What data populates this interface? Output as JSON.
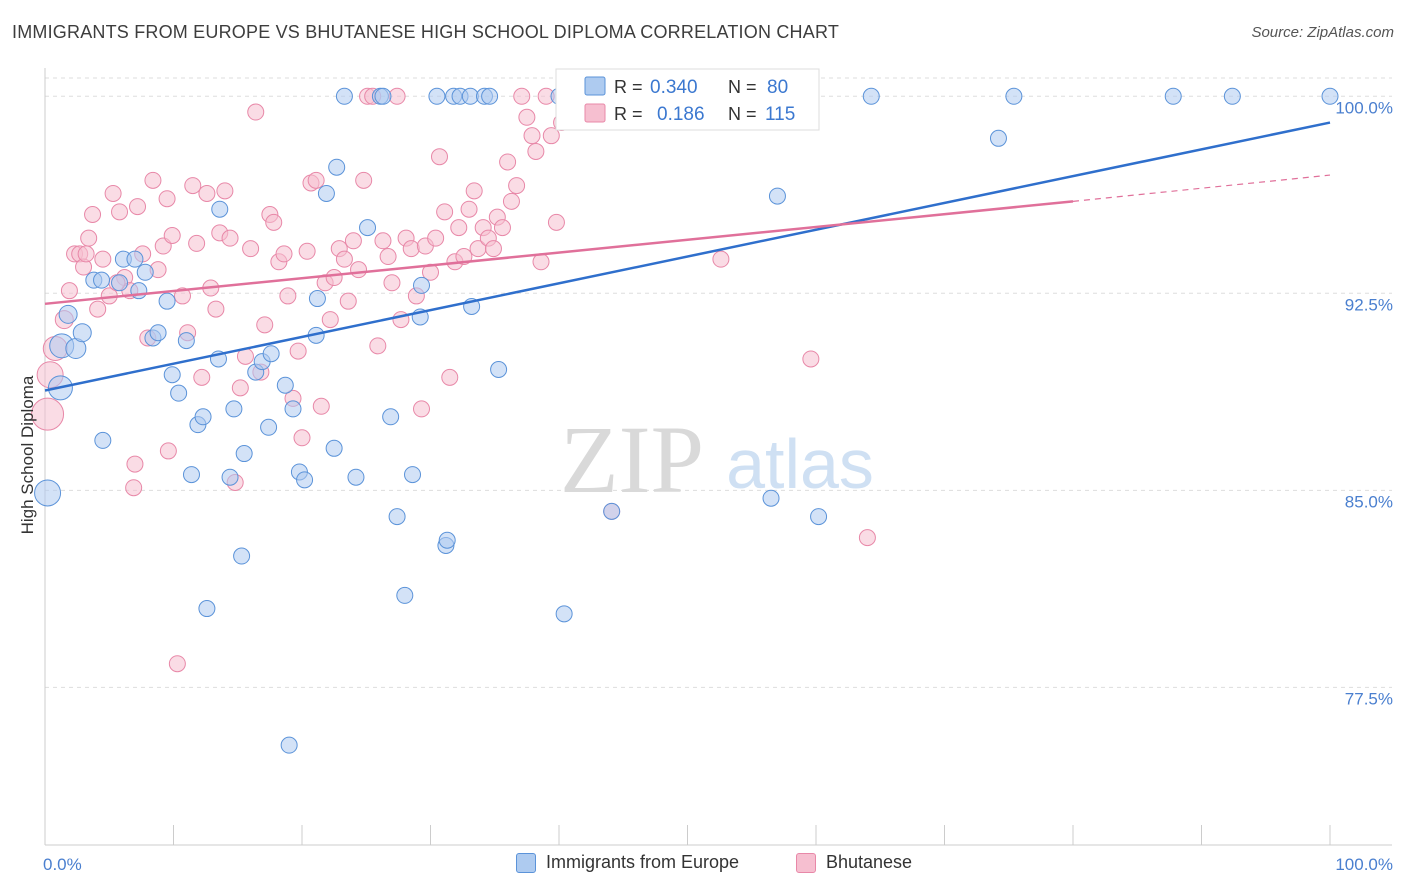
{
  "header": {
    "title": "IMMIGRANTS FROM EUROPE VS BHUTANESE HIGH SCHOOL DIPLOMA CORRELATION CHART",
    "source": "Source: ZipAtlas.com"
  },
  "watermark": {
    "zip": "ZIP",
    "atlas": "atlas"
  },
  "colors": {
    "blue_fill": "#aecbf0",
    "blue_stroke": "#5b93d9",
    "blue_line": "#2f6fcc",
    "pink_fill": "#f6bfd0",
    "pink_stroke": "#e888a8",
    "pink_line": "#e0709a",
    "tick_label": "#4a7fcf",
    "grid": "#dddddd"
  },
  "legend": {
    "rows": [
      {
        "r_label": "R =",
        "r_value": "0.340",
        "n_label": "N =",
        "n_value": "80"
      },
      {
        "r_label": "R =",
        "r_value": "0.186",
        "n_label": "N =",
        "n_value": "115"
      }
    ]
  },
  "chart_data": {
    "type": "scatter",
    "title": "IMMIGRANTS FROM EUROPE VS BHUTANESE HIGH SCHOOL DIPLOMA CORRELATION CHART",
    "xlabel": "",
    "ylabel": "High School Diploma",
    "xlim": [
      0,
      100
    ],
    "ylim": [
      71.5,
      101
    ],
    "x_tick_labels": [
      "0.0%",
      "100.0%"
    ],
    "y_ticks": [
      77.5,
      85.0,
      92.5,
      100.0
    ],
    "y_tick_labels": [
      "77.5%",
      "85.0%",
      "92.5%",
      "100.0%"
    ],
    "grid": true,
    "legend_position": "top-center",
    "series": [
      {
        "name": "Immigrants from Europe",
        "r": 0.34,
        "n": 80,
        "trend": {
          "x": [
            0,
            100
          ],
          "y": [
            88.8,
            99.0
          ]
        },
        "points": [
          [
            0.2,
            84.9,
            13
          ],
          [
            1.2,
            88.9,
            12
          ],
          [
            1.3,
            90.5,
            12
          ],
          [
            2.4,
            90.4,
            10
          ],
          [
            2.9,
            91.0,
            9
          ],
          [
            1.8,
            91.7,
            9
          ],
          [
            3.8,
            93.0,
            8
          ],
          [
            4.4,
            93.0,
            8
          ],
          [
            4.5,
            86.9,
            8
          ],
          [
            6.1,
            93.8,
            8
          ],
          [
            7.0,
            93.8,
            8
          ],
          [
            5.8,
            92.9,
            8
          ],
          [
            7.3,
            92.6,
            8
          ],
          [
            7.8,
            93.3,
            8
          ],
          [
            8.4,
            90.8,
            8
          ],
          [
            8.8,
            91.0,
            8
          ],
          [
            9.5,
            92.2,
            8
          ],
          [
            9.9,
            89.4,
            8
          ],
          [
            10.4,
            88.7,
            8
          ],
          [
            11.0,
            90.7,
            8
          ],
          [
            11.4,
            85.6,
            8
          ],
          [
            11.9,
            87.5,
            8
          ],
          [
            12.3,
            87.8,
            8
          ],
          [
            12.6,
            80.5,
            8
          ],
          [
            13.5,
            90.0,
            8
          ],
          [
            13.6,
            95.7,
            8
          ],
          [
            14.4,
            85.5,
            8
          ],
          [
            14.7,
            88.1,
            8
          ],
          [
            15.5,
            86.4,
            8
          ],
          [
            15.3,
            82.5,
            8
          ],
          [
            16.4,
            89.5,
            8
          ],
          [
            16.9,
            89.9,
            8
          ],
          [
            17.4,
            87.4,
            8
          ],
          [
            17.6,
            90.2,
            8
          ],
          [
            18.7,
            89.0,
            8
          ],
          [
            19.3,
            88.1,
            8
          ],
          [
            19.0,
            75.3,
            8
          ],
          [
            19.8,
            85.7,
            8
          ],
          [
            20.2,
            85.4,
            8
          ],
          [
            21.1,
            90.9,
            8
          ],
          [
            21.2,
            92.3,
            8
          ],
          [
            21.9,
            96.3,
            8
          ],
          [
            22.5,
            86.6,
            8
          ],
          [
            22.7,
            97.3,
            8
          ],
          [
            23.3,
            100.0,
            8
          ],
          [
            24.2,
            85.5,
            8
          ],
          [
            25.1,
            95.0,
            8
          ],
          [
            26.1,
            100.0,
            8
          ],
          [
            26.3,
            100.0,
            8
          ],
          [
            26.9,
            87.8,
            8
          ],
          [
            27.4,
            84.0,
            8
          ],
          [
            28.0,
            81.0,
            8
          ],
          [
            28.6,
            85.6,
            8
          ],
          [
            29.3,
            92.8,
            8
          ],
          [
            29.2,
            91.6,
            8
          ],
          [
            30.5,
            100.0,
            8
          ],
          [
            31.2,
            82.9,
            8
          ],
          [
            31.3,
            83.1,
            8
          ],
          [
            31.8,
            100.0,
            8
          ],
          [
            32.3,
            100.0,
            8
          ],
          [
            33.1,
            100.0,
            8
          ],
          [
            33.2,
            92.0,
            8
          ],
          [
            34.2,
            100.0,
            8
          ],
          [
            34.6,
            100.0,
            8
          ],
          [
            35.3,
            89.6,
            8
          ],
          [
            40.0,
            100.0,
            8
          ],
          [
            40.4,
            80.3,
            8
          ],
          [
            44.1,
            84.2,
            8
          ],
          [
            47.2,
            100.0,
            8
          ],
          [
            56.5,
            84.7,
            8
          ],
          [
            57.0,
            96.2,
            8
          ],
          [
            60.2,
            84.0,
            8
          ],
          [
            74.2,
            98.4,
            8
          ],
          [
            75.4,
            100.0,
            8
          ],
          [
            92.4,
            100.0,
            8
          ],
          [
            100.0,
            100.0,
            8
          ],
          [
            50.5,
            100.0,
            8
          ],
          [
            55.1,
            100.0,
            8
          ],
          [
            64.3,
            100.0,
            8
          ],
          [
            87.8,
            100.0,
            8
          ]
        ]
      },
      {
        "name": "Bhutanese",
        "r": 0.186,
        "n": 115,
        "trend": {
          "x": [
            0,
            80
          ],
          "y": [
            92.1,
            96.0
          ]
        },
        "trend_dashed": {
          "x": [
            80,
            100
          ],
          "y": [
            96.0,
            97.0
          ]
        },
        "points": [
          [
            0.2,
            87.9,
            16
          ],
          [
            0.4,
            89.4,
            13
          ],
          [
            0.8,
            90.4,
            12
          ],
          [
            1.5,
            91.5,
            9
          ],
          [
            1.9,
            92.6,
            8
          ],
          [
            2.3,
            94.0,
            8
          ],
          [
            2.7,
            94.0,
            8
          ],
          [
            3.0,
            93.5,
            8
          ],
          [
            3.4,
            94.6,
            8
          ],
          [
            3.7,
            95.5,
            8
          ],
          [
            4.1,
            91.9,
            8
          ],
          [
            4.5,
            93.8,
            8
          ],
          [
            5.0,
            92.4,
            8
          ],
          [
            5.3,
            96.3,
            8
          ],
          [
            5.8,
            95.6,
            8
          ],
          [
            6.2,
            93.1,
            8
          ],
          [
            6.6,
            92.6,
            8
          ],
          [
            6.9,
            85.1,
            8
          ],
          [
            7.2,
            95.8,
            8
          ],
          [
            7.6,
            94.0,
            8
          ],
          [
            8.0,
            90.8,
            8
          ],
          [
            8.4,
            96.8,
            8
          ],
          [
            8.8,
            93.4,
            8
          ],
          [
            9.2,
            94.3,
            8
          ],
          [
            9.5,
            96.1,
            8
          ],
          [
            9.9,
            94.7,
            8
          ],
          [
            10.3,
            78.4,
            8
          ],
          [
            10.7,
            92.4,
            8
          ],
          [
            11.1,
            91.0,
            8
          ],
          [
            11.5,
            96.6,
            8
          ],
          [
            11.8,
            94.4,
            8
          ],
          [
            12.2,
            89.3,
            8
          ],
          [
            12.6,
            96.3,
            8
          ],
          [
            12.9,
            92.7,
            8
          ],
          [
            13.3,
            91.9,
            8
          ],
          [
            13.6,
            94.8,
            8
          ],
          [
            14.0,
            96.4,
            8
          ],
          [
            14.4,
            94.6,
            8
          ],
          [
            14.8,
            85.3,
            8
          ],
          [
            15.2,
            88.9,
            8
          ],
          [
            15.6,
            90.1,
            8
          ],
          [
            16.0,
            94.2,
            8
          ],
          [
            16.4,
            99.4,
            8
          ],
          [
            16.8,
            89.5,
            8
          ],
          [
            17.1,
            91.3,
            8
          ],
          [
            17.5,
            95.5,
            8
          ],
          [
            17.8,
            95.2,
            8
          ],
          [
            18.2,
            93.7,
            8
          ],
          [
            18.6,
            94.0,
            8
          ],
          [
            18.9,
            92.4,
            8
          ],
          [
            19.3,
            88.5,
            8
          ],
          [
            19.7,
            90.3,
            8
          ],
          [
            20.0,
            87.0,
            8
          ],
          [
            20.4,
            94.1,
            8
          ],
          [
            20.7,
            96.7,
            8
          ],
          [
            21.1,
            96.8,
            8
          ],
          [
            21.5,
            88.2,
            8
          ],
          [
            21.8,
            92.9,
            8
          ],
          [
            22.2,
            91.5,
            8
          ],
          [
            22.5,
            93.1,
            8
          ],
          [
            22.9,
            94.2,
            8
          ],
          [
            23.3,
            93.8,
            8
          ],
          [
            23.6,
            92.2,
            8
          ],
          [
            24.0,
            94.5,
            8
          ],
          [
            24.4,
            93.4,
            8
          ],
          [
            24.8,
            96.8,
            8
          ],
          [
            25.1,
            100.0,
            8
          ],
          [
            25.5,
            100.0,
            8
          ],
          [
            25.9,
            90.5,
            8
          ],
          [
            26.3,
            94.5,
            8
          ],
          [
            26.7,
            93.9,
            8
          ],
          [
            27.0,
            92.9,
            8
          ],
          [
            27.4,
            100.0,
            8
          ],
          [
            27.7,
            91.5,
            8
          ],
          [
            28.1,
            94.6,
            8
          ],
          [
            28.5,
            94.2,
            8
          ],
          [
            28.9,
            92.4,
            8
          ],
          [
            29.3,
            88.1,
            8
          ],
          [
            29.6,
            94.3,
            8
          ],
          [
            30.0,
            93.3,
            8
          ],
          [
            30.4,
            94.6,
            8
          ],
          [
            30.7,
            97.7,
            8
          ],
          [
            31.1,
            95.6,
            8
          ],
          [
            31.5,
            89.3,
            8
          ],
          [
            31.9,
            93.7,
            8
          ],
          [
            32.2,
            95.0,
            8
          ],
          [
            32.6,
            93.9,
            8
          ],
          [
            33.0,
            95.7,
            8
          ],
          [
            33.4,
            96.4,
            8
          ],
          [
            33.7,
            94.2,
            8
          ],
          [
            34.1,
            95.0,
            8
          ],
          [
            34.5,
            94.6,
            8
          ],
          [
            34.9,
            94.2,
            8
          ],
          [
            35.2,
            95.4,
            8
          ],
          [
            35.6,
            95.0,
            8
          ],
          [
            36.0,
            97.5,
            8
          ],
          [
            36.3,
            96.0,
            8
          ],
          [
            36.7,
            96.6,
            8
          ],
          [
            37.1,
            100.0,
            8
          ],
          [
            37.5,
            99.2,
            8
          ],
          [
            37.9,
            98.5,
            8
          ],
          [
            38.2,
            97.9,
            8
          ],
          [
            38.6,
            93.7,
            8
          ],
          [
            39.0,
            100.0,
            8
          ],
          [
            39.4,
            98.5,
            8
          ],
          [
            39.8,
            95.2,
            8
          ],
          [
            40.2,
            99.0,
            8
          ],
          [
            44.1,
            84.2,
            8
          ],
          [
            52.6,
            93.8,
            8
          ],
          [
            59.6,
            90.0,
            8
          ],
          [
            64.0,
            83.2,
            8
          ],
          [
            5.6,
            92.9,
            8
          ],
          [
            7.0,
            86.0,
            8
          ],
          [
            9.6,
            86.5,
            8
          ],
          [
            3.2,
            94.0,
            8
          ]
        ]
      }
    ]
  }
}
